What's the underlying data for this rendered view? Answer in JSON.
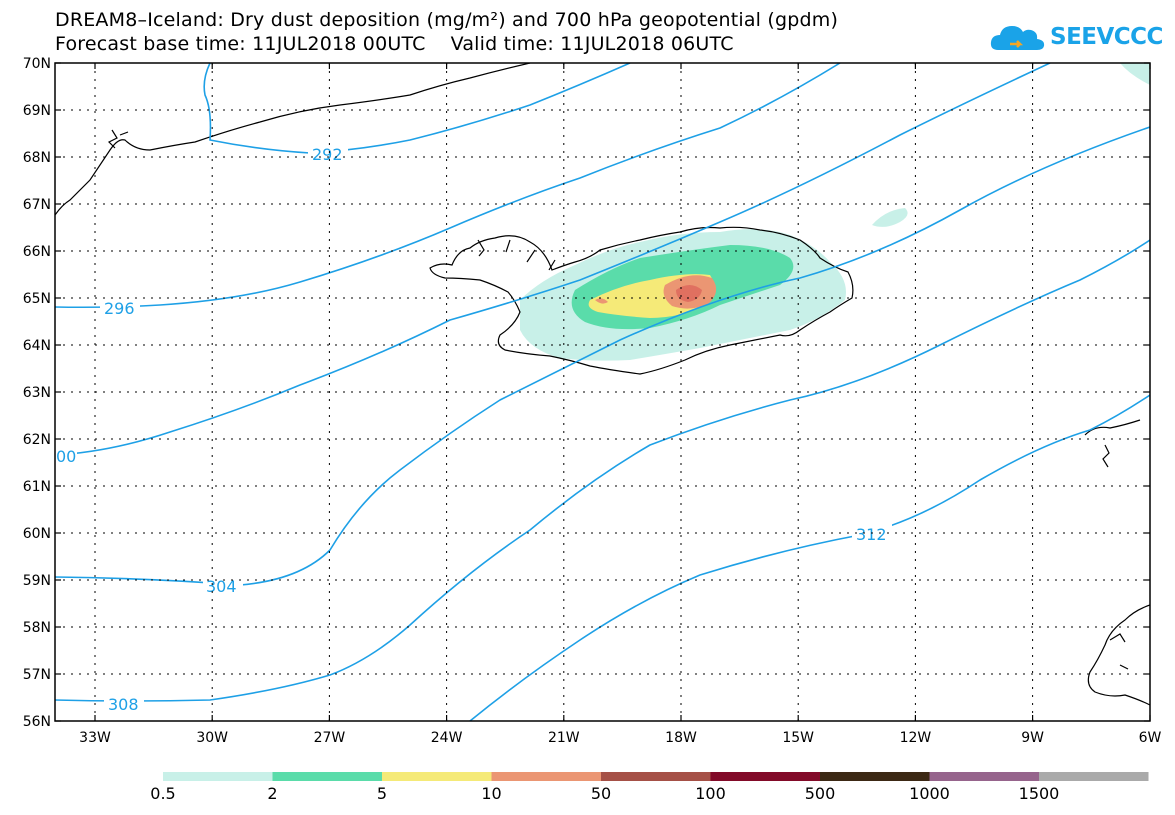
{
  "title_line1": "DREAM8–Iceland: Dry dust deposition (mg/m²) and 700 hPa geopotential (gpdm)",
  "title_line2": "Forecast base time: 11JUL2018 00UTC    Valid time: 11JUL2018 06UTC",
  "logo": {
    "text": "SEEVCCC",
    "icon": "cloud-icon",
    "color": "#1aa3e8"
  },
  "map": {
    "lat_labels": [
      "70N",
      "69N",
      "68N",
      "67N",
      "66N",
      "65N",
      "64N",
      "63N",
      "62N",
      "61N",
      "60N",
      "59N",
      "58N",
      "57N",
      "56N"
    ],
    "lon_labels": [
      "33W",
      "30W",
      "27W",
      "24W",
      "21W",
      "18W",
      "15W",
      "12W",
      "9W",
      "6W"
    ],
    "contour_color": "#1ea0e6",
    "contour_labels": [
      "292",
      "296",
      "00",
      "304",
      "308",
      "312"
    ]
  },
  "colorbar": {
    "colors": [
      "#c8f0e8",
      "#5adcaa",
      "#f5ea78",
      "#eb9673",
      "#a55046",
      "#820a28",
      "#3c2814",
      "#96648c",
      "#aaaaaa"
    ],
    "labels": [
      "0.5",
      "2",
      "5",
      "10",
      "50",
      "100",
      "500",
      "1000",
      "1500"
    ]
  }
}
